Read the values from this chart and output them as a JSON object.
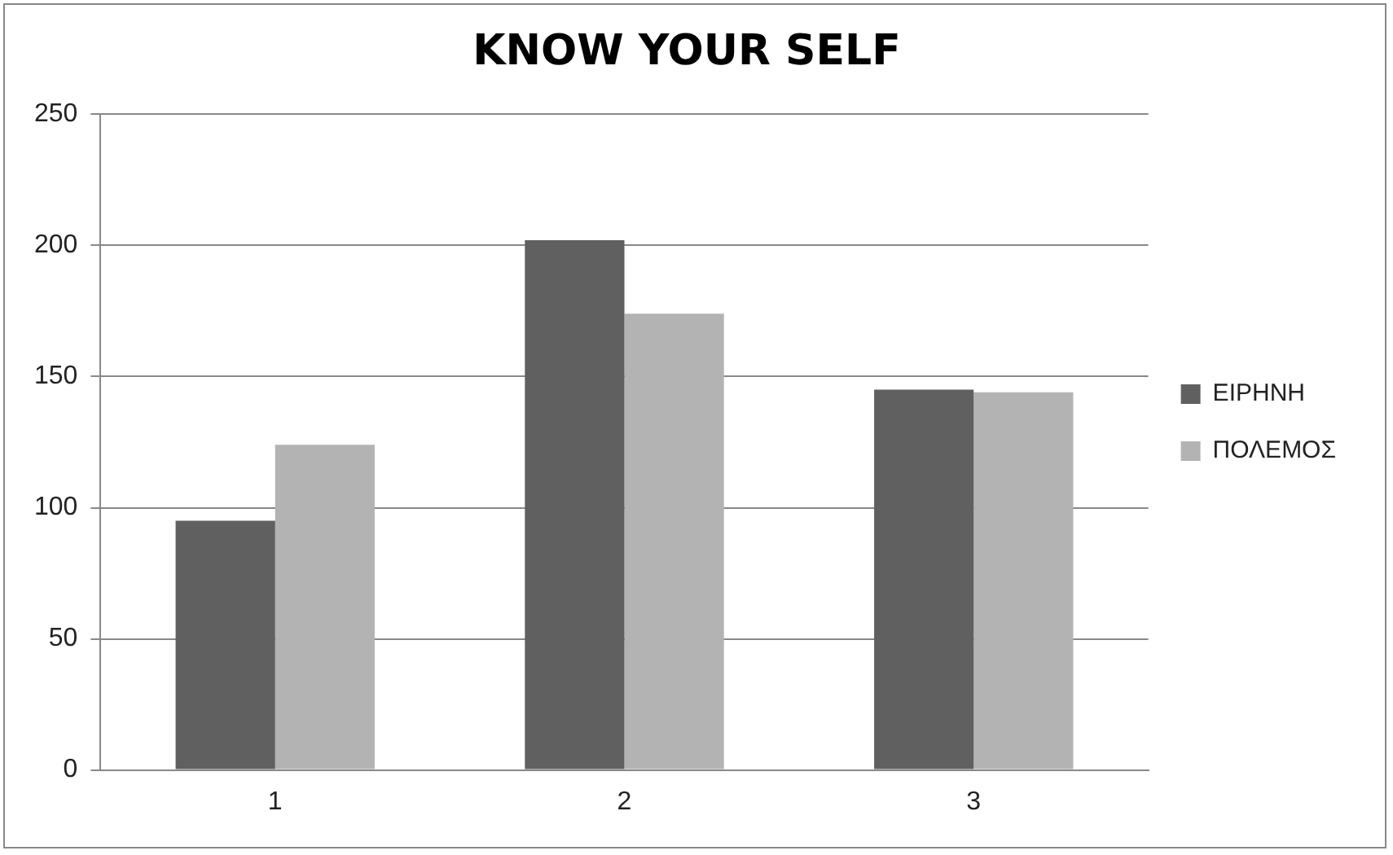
{
  "chart_data": {
    "type": "bar",
    "title": "KNOW YOUR SELF",
    "categories": [
      "1",
      "2",
      "3"
    ],
    "series": [
      {
        "name": "ΕΙΡΗΝΗ",
        "color": "#606060",
        "values": [
          95,
          202,
          145
        ]
      },
      {
        "name": "ΠΟΛΕΜΟΣ",
        "color": "#b3b3b3",
        "values": [
          124,
          174,
          144
        ]
      }
    ],
    "ylim": [
      0,
      250
    ],
    "yticks": [
      0,
      50,
      100,
      150,
      200,
      250
    ],
    "grid": "y",
    "legend": "right"
  }
}
